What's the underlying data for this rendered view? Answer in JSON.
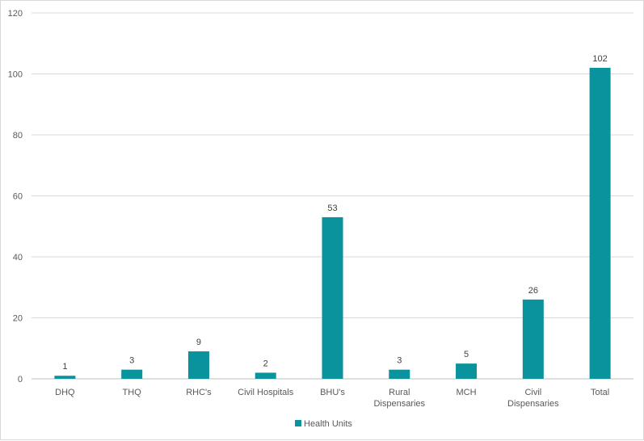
{
  "chart_data": {
    "type": "bar",
    "title": "",
    "xlabel": "",
    "ylabel": "",
    "categories": [
      [
        "DHQ"
      ],
      [
        "THQ"
      ],
      [
        "RHC's"
      ],
      [
        "Civil Hospitals"
      ],
      [
        "BHU's"
      ],
      [
        "Rural",
        "Dispensaries"
      ],
      [
        "MCH"
      ],
      [
        "Civil",
        "Dispensaries"
      ],
      [
        "Total"
      ]
    ],
    "series": [
      {
        "name": "Health Units",
        "values": [
          1,
          3,
          9,
          2,
          53,
          3,
          5,
          26,
          102
        ],
        "color": "#0A929D"
      }
    ],
    "ylim": [
      0,
      120
    ],
    "yticks": [
      0,
      20,
      40,
      60,
      80,
      100,
      120
    ],
    "grid": true,
    "legend": "bottom",
    "data_labels": true
  }
}
